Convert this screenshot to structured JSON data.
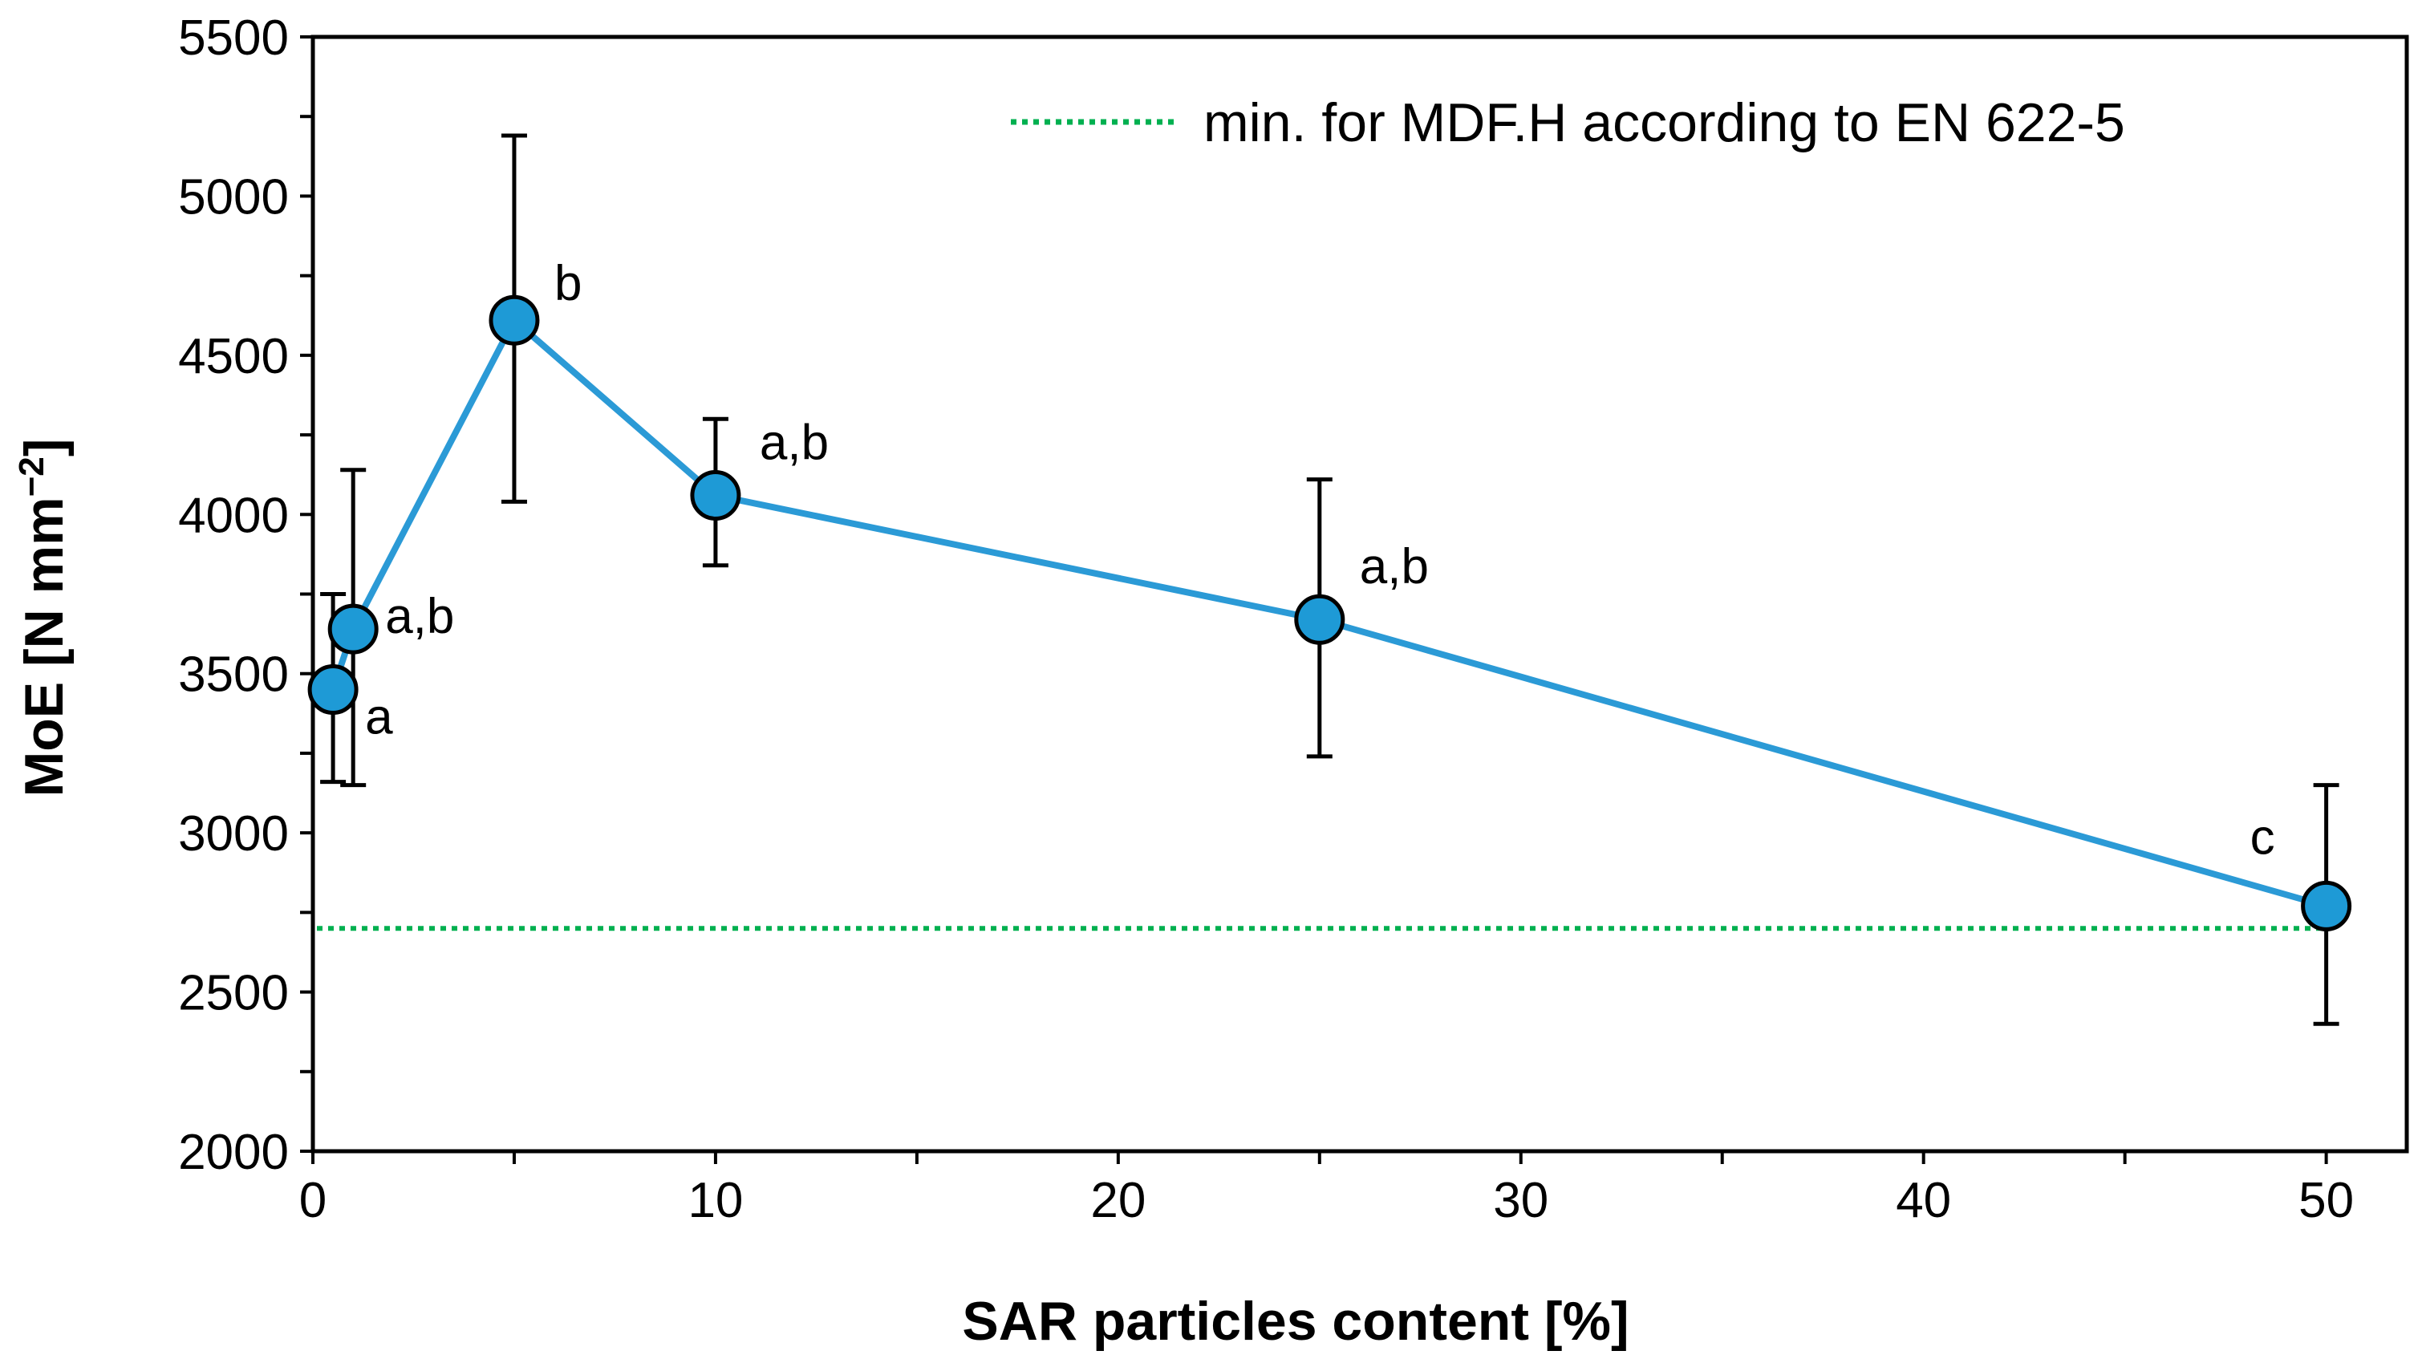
{
  "chart_data": {
    "type": "line",
    "title": "",
    "xlabel": "SAR particles content [%]",
    "ylabel_main": "MoE [N mm",
    "ylabel_sup": "−2",
    "ylabel_end": "]",
    "xlim": [
      0,
      52
    ],
    "ylim": [
      2000,
      5500
    ],
    "x_ticks": [
      0,
      10,
      20,
      30,
      40,
      50
    ],
    "x_tick_labels": [
      "0",
      "10",
      "20",
      "30",
      "40",
      "50"
    ],
    "y_ticks": [
      2000,
      2500,
      3000,
      3500,
      4000,
      4500,
      5000,
      5500
    ],
    "y_tick_labels": [
      "2000",
      "2500",
      "3000",
      "3500",
      "4000",
      "4500",
      "5000",
      "5500"
    ],
    "series": [
      {
        "name": "MoE",
        "color": "#2b9ad6",
        "marker_color": "#1e9ad6",
        "x": [
          0.5,
          1,
          5,
          10,
          25,
          50
        ],
        "y": [
          3450,
          3640,
          4610,
          4060,
          3670,
          2770
        ],
        "err_low": [
          3160,
          3150,
          4040,
          3840,
          3240,
          2400
        ],
        "err_high": [
          3750,
          4140,
          5190,
          4300,
          4110,
          3150
        ],
        "labels": [
          "a",
          "a,b",
          "b",
          "a,b",
          "a,b",
          "c"
        ]
      }
    ],
    "reference_line": {
      "y": 2700,
      "color": "#00b050",
      "label": "min. for MDF.H according to EN 622-5"
    },
    "legend_position": "top-right",
    "grid": false
  }
}
